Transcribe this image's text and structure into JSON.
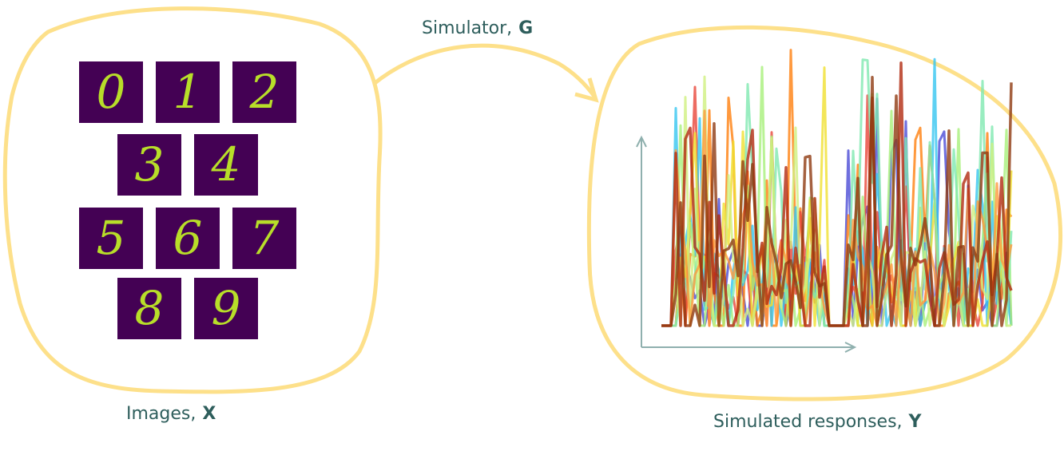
{
  "left": {
    "caption": {
      "text": "Images,",
      "symbol": "X"
    },
    "digits": [
      "0",
      "1",
      "2",
      "3",
      "4",
      "5",
      "6",
      "7",
      "8",
      "9"
    ]
  },
  "arrow": {
    "caption": {
      "text": "Simulator,",
      "symbol": "G"
    }
  },
  "right": {
    "caption": {
      "text": "Simulated responses,",
      "symbol": "Y"
    }
  }
}
